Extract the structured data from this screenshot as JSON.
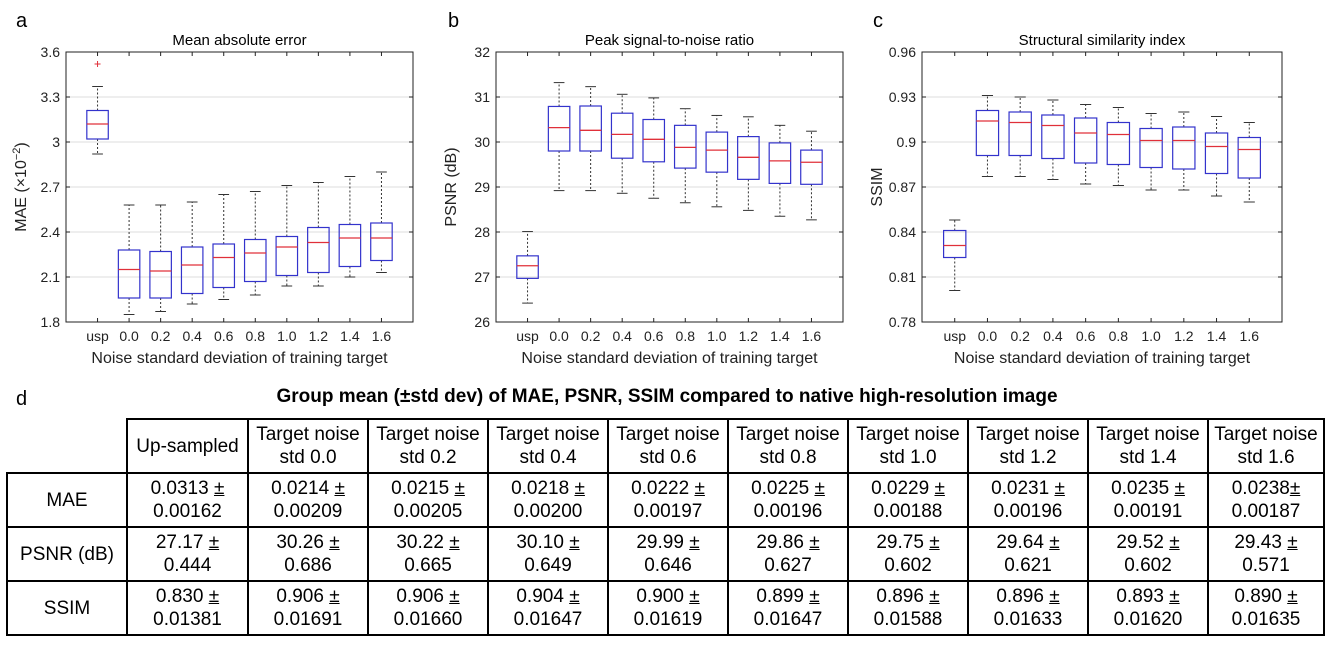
{
  "panels": {
    "a": "a",
    "b": "b",
    "c": "c",
    "d": "d"
  },
  "chart_data": [
    {
      "type": "box",
      "title": "Mean absolute error",
      "xlabel": "Noise standard deviation of training target",
      "ylabel": "MAE (×10",
      "ylabel_exp": "−2",
      "ylabel_end": ")",
      "categories": [
        "usp",
        "0.0",
        "0.2",
        "0.4",
        "0.6",
        "0.8",
        "1.0",
        "1.2",
        "1.4",
        "1.6"
      ],
      "ylim": [
        1.8,
        3.6
      ],
      "yticks": [
        1.8,
        2.1,
        2.4,
        2.7,
        3.0,
        3.3,
        3.6
      ],
      "ytick_labels": [
        "1.8",
        "2.1",
        "2.4",
        "2.7",
        "3",
        "3.3",
        "3.6"
      ],
      "grid": true,
      "box_color": "#3333cc",
      "median_color": "#e0303a",
      "boxes": [
        {
          "whislo": 2.92,
          "q1": 3.02,
          "med": 3.12,
          "q3": 3.21,
          "whishi": 3.37,
          "fliers": [
            3.52
          ]
        },
        {
          "whislo": 1.85,
          "q1": 1.96,
          "med": 2.15,
          "q3": 2.28,
          "whishi": 2.58,
          "fliers": []
        },
        {
          "whislo": 1.87,
          "q1": 1.96,
          "med": 2.14,
          "q3": 2.27,
          "whishi": 2.58,
          "fliers": []
        },
        {
          "whislo": 1.92,
          "q1": 1.99,
          "med": 2.18,
          "q3": 2.3,
          "whishi": 2.6,
          "fliers": []
        },
        {
          "whislo": 1.95,
          "q1": 2.03,
          "med": 2.23,
          "q3": 2.32,
          "whishi": 2.65,
          "fliers": []
        },
        {
          "whislo": 1.98,
          "q1": 2.07,
          "med": 2.26,
          "q3": 2.35,
          "whishi": 2.67,
          "fliers": []
        },
        {
          "whislo": 2.04,
          "q1": 2.11,
          "med": 2.3,
          "q3": 2.37,
          "whishi": 2.71,
          "fliers": []
        },
        {
          "whislo": 2.04,
          "q1": 2.13,
          "med": 2.33,
          "q3": 2.43,
          "whishi": 2.73,
          "fliers": []
        },
        {
          "whislo": 2.1,
          "q1": 2.17,
          "med": 2.36,
          "q3": 2.45,
          "whishi": 2.77,
          "fliers": []
        },
        {
          "whislo": 2.13,
          "q1": 2.21,
          "med": 2.36,
          "q3": 2.46,
          "whishi": 2.8,
          "fliers": []
        }
      ]
    },
    {
      "type": "box",
      "title": "Peak signal-to-noise ratio",
      "xlabel": "Noise standard deviation of training target",
      "ylabel": "PSNR (dB)",
      "categories": [
        "usp",
        "0.0",
        "0.2",
        "0.4",
        "0.6",
        "0.8",
        "1.0",
        "1.2",
        "1.4",
        "1.6"
      ],
      "ylim": [
        26,
        32
      ],
      "yticks": [
        26,
        27,
        28,
        29,
        30,
        31,
        32
      ],
      "ytick_labels": [
        "26",
        "27",
        "28",
        "29",
        "30",
        "31",
        "32"
      ],
      "grid": true,
      "box_color": "#3333cc",
      "median_color": "#e0303a",
      "boxes": [
        {
          "whislo": 26.42,
          "q1": 26.97,
          "med": 27.25,
          "q3": 27.47,
          "whishi": 28.01,
          "fliers": []
        },
        {
          "whislo": 28.92,
          "q1": 29.8,
          "med": 30.32,
          "q3": 30.79,
          "whishi": 31.32,
          "fliers": []
        },
        {
          "whislo": 28.92,
          "q1": 29.8,
          "med": 30.26,
          "q3": 30.8,
          "whishi": 31.23,
          "fliers": []
        },
        {
          "whislo": 28.86,
          "q1": 29.64,
          "med": 30.17,
          "q3": 30.64,
          "whishi": 31.06,
          "fliers": []
        },
        {
          "whislo": 28.75,
          "q1": 29.56,
          "med": 30.06,
          "q3": 30.5,
          "whishi": 30.98,
          "fliers": []
        },
        {
          "whislo": 28.65,
          "q1": 29.42,
          "med": 29.88,
          "q3": 30.37,
          "whishi": 30.74,
          "fliers": []
        },
        {
          "whislo": 28.56,
          "q1": 29.33,
          "med": 29.82,
          "q3": 30.22,
          "whishi": 30.59,
          "fliers": []
        },
        {
          "whislo": 28.48,
          "q1": 29.17,
          "med": 29.66,
          "q3": 30.12,
          "whishi": 30.56,
          "fliers": []
        },
        {
          "whislo": 28.35,
          "q1": 29.08,
          "med": 29.58,
          "q3": 29.98,
          "whishi": 30.37,
          "fliers": []
        },
        {
          "whislo": 28.27,
          "q1": 29.06,
          "med": 29.55,
          "q3": 29.82,
          "whishi": 30.24,
          "fliers": []
        }
      ]
    },
    {
      "type": "box",
      "title": "Structural similarity index",
      "xlabel": "Noise standard deviation of training target",
      "ylabel": "SSIM",
      "categories": [
        "usp",
        "0.0",
        "0.2",
        "0.4",
        "0.6",
        "0.8",
        "1.0",
        "1.2",
        "1.4",
        "1.6"
      ],
      "ylim": [
        0.78,
        0.96
      ],
      "yticks": [
        0.78,
        0.81,
        0.84,
        0.87,
        0.9,
        0.93,
        0.96
      ],
      "ytick_labels": [
        "0.78",
        "0.81",
        "0.84",
        "0.87",
        "0.9",
        "0.93",
        "0.96"
      ],
      "grid": true,
      "box_color": "#3333cc",
      "median_color": "#e0303a",
      "boxes": [
        {
          "whislo": 0.801,
          "q1": 0.823,
          "med": 0.831,
          "q3": 0.841,
          "whishi": 0.848,
          "fliers": []
        },
        {
          "whislo": 0.877,
          "q1": 0.891,
          "med": 0.914,
          "q3": 0.921,
          "whishi": 0.931,
          "fliers": []
        },
        {
          "whislo": 0.877,
          "q1": 0.891,
          "med": 0.913,
          "q3": 0.92,
          "whishi": 0.93,
          "fliers": []
        },
        {
          "whislo": 0.875,
          "q1": 0.889,
          "med": 0.911,
          "q3": 0.918,
          "whishi": 0.928,
          "fliers": []
        },
        {
          "whislo": 0.872,
          "q1": 0.886,
          "med": 0.906,
          "q3": 0.916,
          "whishi": 0.925,
          "fliers": []
        },
        {
          "whislo": 0.871,
          "q1": 0.885,
          "med": 0.905,
          "q3": 0.913,
          "whishi": 0.923,
          "fliers": []
        },
        {
          "whislo": 0.868,
          "q1": 0.883,
          "med": 0.901,
          "q3": 0.909,
          "whishi": 0.919,
          "fliers": []
        },
        {
          "whislo": 0.868,
          "q1": 0.882,
          "med": 0.901,
          "q3": 0.91,
          "whishi": 0.92,
          "fliers": []
        },
        {
          "whislo": 0.864,
          "q1": 0.879,
          "med": 0.897,
          "q3": 0.906,
          "whishi": 0.917,
          "fliers": []
        },
        {
          "whislo": 0.86,
          "q1": 0.876,
          "med": 0.895,
          "q3": 0.903,
          "whishi": 0.913,
          "fliers": []
        }
      ]
    }
  ],
  "table": {
    "title": "Group mean (±std dev) of MAE, PSNR, SSIM compared to native high-resolution image",
    "headers": [
      [
        "Up-sampled"
      ],
      [
        "Target noise",
        "std  0.0"
      ],
      [
        "Target noise",
        "std 0.2"
      ],
      [
        "Target noise",
        "std 0.4"
      ],
      [
        "Target noise",
        "std 0.6"
      ],
      [
        "Target noise",
        "std 0.8"
      ],
      [
        "Target noise",
        "std 1.0"
      ],
      [
        "Target noise",
        "std 1.2"
      ],
      [
        "Target noise",
        "std 1.4"
      ],
      [
        "Target noise",
        "std 1.6"
      ]
    ],
    "rows": [
      {
        "label": "MAE",
        "cells": [
          [
            "0.0313 ±",
            "0.00162"
          ],
          [
            "0.0214 ±",
            "0.00209"
          ],
          [
            "0.0215 ±",
            "0.00205"
          ],
          [
            "0.0218 ±",
            "0.00200"
          ],
          [
            "0.0222 ±",
            "0.00197"
          ],
          [
            "0.0225 ±",
            "0.00196"
          ],
          [
            "0.0229 ±",
            "0.00188"
          ],
          [
            "0.0231 ±",
            "0.00196"
          ],
          [
            "0.0235 ±",
            "0.00191"
          ],
          [
            "0.0238±",
            "0.00187"
          ]
        ]
      },
      {
        "label": "PSNR (dB)",
        "cells": [
          [
            "27.17 ±",
            "0.444"
          ],
          [
            "30.26 ±",
            "0.686"
          ],
          [
            "30.22 ±",
            "0.665"
          ],
          [
            "30.10 ±",
            "0.649"
          ],
          [
            "29.99 ±",
            "0.646"
          ],
          [
            "29.86 ±",
            "0.627"
          ],
          [
            "29.75 ±",
            "0.602"
          ],
          [
            "29.64 ±",
            "0.621"
          ],
          [
            "29.52 ±",
            "0.602"
          ],
          [
            "29.43 ±",
            "0.571"
          ]
        ]
      },
      {
        "label": "SSIM",
        "cells": [
          [
            "0.830 ±",
            "0.01381"
          ],
          [
            "0.906 ±",
            "0.01691"
          ],
          [
            "0.906 ±",
            "0.01660"
          ],
          [
            "0.904 ±",
            "0.01647"
          ],
          [
            "0.900 ±",
            "0.01619"
          ],
          [
            "0.899 ±",
            "0.01647"
          ],
          [
            "0.896 ±",
            "0.01588"
          ],
          [
            "0.896 ±",
            "0.01633"
          ],
          [
            "0.893 ±",
            "0.01620"
          ],
          [
            "0.890 ±",
            "0.01635"
          ]
        ]
      }
    ]
  }
}
